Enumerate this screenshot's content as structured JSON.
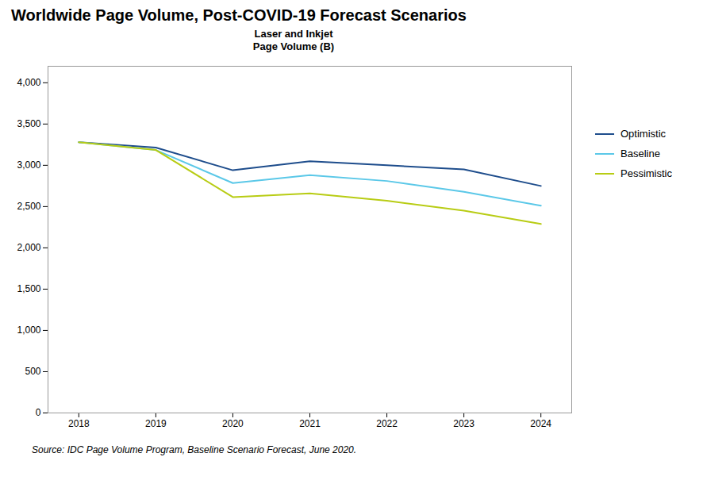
{
  "chart_data": {
    "type": "line",
    "title": "Worldwide Page Volume, Post-COVID-19 Forecast Scenarios",
    "subtitle": "Laser and Inkjet\nPage Volume (B)",
    "source": "Source:  IDC Page Volume Program, Baseline Scenario Forecast, June 2020.",
    "x": [
      2018,
      2019,
      2020,
      2021,
      2022,
      2023,
      2024
    ],
    "series": [
      {
        "name": "Optimistic",
        "color": "#1e4d8c",
        "values": [
          3280,
          3215,
          2940,
          3050,
          3000,
          2950,
          2750
        ]
      },
      {
        "name": "Baseline",
        "color": "#5bc8e8",
        "values": [
          3280,
          3185,
          2785,
          2880,
          2810,
          2680,
          2510
        ]
      },
      {
        "name": "Pessimistic",
        "color": "#b8cc14",
        "values": [
          3280,
          3185,
          2615,
          2660,
          2570,
          2450,
          2290
        ]
      }
    ],
    "xlim": [
      2017.6,
      2024.4
    ],
    "xticks": [
      2018,
      2019,
      2020,
      2021,
      2022,
      2023,
      2024
    ],
    "ylim": [
      0,
      4200
    ],
    "yticks": [
      0,
      500,
      {
        "value": 1000,
        "label": "1,000"
      },
      {
        "value": 1500,
        "label": "1,500"
      },
      {
        "value": 2000,
        "label": "2,000"
      },
      {
        "value": 2500,
        "label": "2,500"
      },
      {
        "value": 3000,
        "label": "3,000"
      },
      {
        "value": 3500,
        "label": "3,500"
      },
      {
        "value": 4000,
        "label": "4,000"
      }
    ],
    "grid": false,
    "legend": "right"
  }
}
